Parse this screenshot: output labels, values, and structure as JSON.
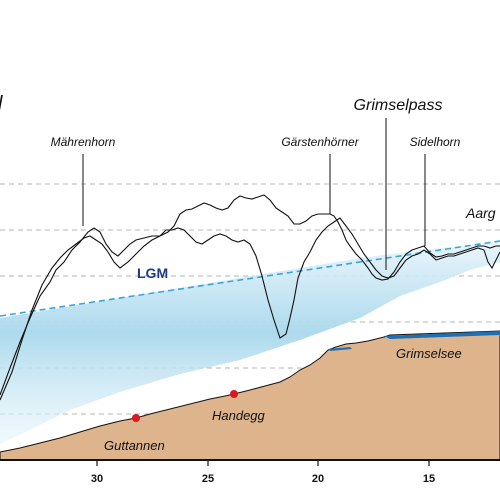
{
  "labels": {
    "partial_left": "l",
    "maehrenhorn": "Mährenhorn",
    "gaerstenhoerner": "Gärstenhörner",
    "grimselpass": "Grimselpass",
    "sidelhorn": "Sidelhorn",
    "aarg": "Aarg",
    "lgm": "LGM",
    "grimselsee": "Grimselsee",
    "handegg": "Handegg",
    "guttannen": "Guttannen"
  },
  "axis": {
    "ticks": [
      "30",
      "25",
      "20",
      "15"
    ]
  },
  "colors": {
    "terrain": "#deb48c",
    "lake": "#1f6fb4",
    "lgm_line": "#3aa6d8",
    "lgm_text": "#1a3a8c",
    "ice": "#a9d8ec",
    "village_dot": "#d71920",
    "gridline": "#b5b5b5"
  }
}
